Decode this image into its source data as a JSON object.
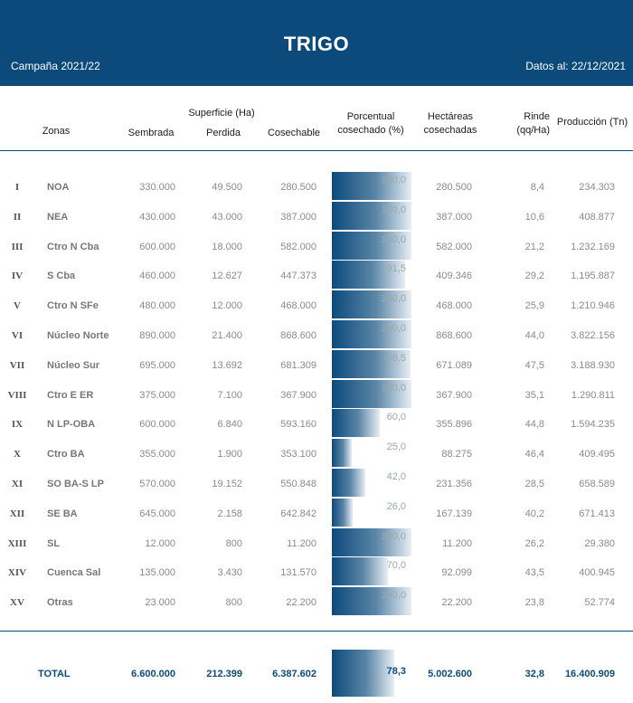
{
  "header": {
    "title": "TRIGO",
    "campaign": "Campaña 2021/22",
    "date": "Datos al: 22/12/2021"
  },
  "columns": {
    "zonas": "Zonas",
    "superficie": "Superficie (Ha)",
    "sembrada": "Sembrada",
    "perdida": "Perdida",
    "cosechable": "Cosechable",
    "porcentual_1": "Porcentual",
    "porcentual_2": "cosechado (%)",
    "hectareas_1": "Hectáreas",
    "hectareas_2": "cosechadas",
    "rinde_1": "Rinde",
    "rinde_2": "(qq/Ha)",
    "produccion": "Producción (Tn)"
  },
  "rows": [
    {
      "roman": "I",
      "zona": "NOA",
      "sembrada": "330.000",
      "perdida": "49.500",
      "cosechable": "280.500",
      "pct_label": "100,0",
      "pct": 100.0,
      "hectareas": "280.500",
      "rinde": "8,4",
      "produccion": "234.303"
    },
    {
      "roman": "II",
      "zona": "NEA",
      "sembrada": "430.000",
      "perdida": "43.000",
      "cosechable": "387.000",
      "pct_label": "100,0",
      "pct": 100.0,
      "hectareas": "387.000",
      "rinde": "10,6",
      "produccion": "408.877"
    },
    {
      "roman": "III",
      "zona": "Ctro N Cba",
      "sembrada": "600.000",
      "perdida": "18.000",
      "cosechable": "582.000",
      "pct_label": "100,0",
      "pct": 100.0,
      "hectareas": "582.000",
      "rinde": "21,2",
      "produccion": "1.232.169"
    },
    {
      "roman": "IV",
      "zona": "S Cba",
      "sembrada": "460.000",
      "perdida": "12.627",
      "cosechable": "447.373",
      "pct_label": "91,5",
      "pct": 91.5,
      "hectareas": "409.346",
      "rinde": "29,2",
      "produccion": "1.195.887"
    },
    {
      "roman": "V",
      "zona": "Ctro N SFe",
      "sembrada": "480.000",
      "perdida": "12.000",
      "cosechable": "468.000",
      "pct_label": "100,0",
      "pct": 100.0,
      "hectareas": "468.000",
      "rinde": "25,9",
      "produccion": "1.210.946"
    },
    {
      "roman": "VI",
      "zona": "Núcleo Norte",
      "sembrada": "890.000",
      "perdida": "21.400",
      "cosechable": "868.600",
      "pct_label": "100,0",
      "pct": 100.0,
      "hectareas": "868.600",
      "rinde": "44,0",
      "produccion": "3.822.156"
    },
    {
      "roman": "VII",
      "zona": "Núcleo Sur",
      "sembrada": "695.000",
      "perdida": "13.692",
      "cosechable": "681.309",
      "pct_label": "98,5",
      "pct": 98.5,
      "hectareas": "671.089",
      "rinde": "47,5",
      "produccion": "3.188.930"
    },
    {
      "roman": "VIII",
      "zona": "Ctro E ER",
      "sembrada": "375.000",
      "perdida": "7.100",
      "cosechable": "367.900",
      "pct_label": "100,0",
      "pct": 100.0,
      "hectareas": "367.900",
      "rinde": "35,1",
      "produccion": "1.290.811"
    },
    {
      "roman": "IX",
      "zona": "N LP-OBA",
      "sembrada": "600.000",
      "perdida": "6.840",
      "cosechable": "593.160",
      "pct_label": "60,0",
      "pct": 60.0,
      "hectareas": "355.896",
      "rinde": "44,8",
      "produccion": "1.594.235"
    },
    {
      "roman": "X",
      "zona": "Ctro BA",
      "sembrada": "355.000",
      "perdida": "1.900",
      "cosechable": "353.100",
      "pct_label": "25,0",
      "pct": 25.0,
      "hectareas": "88.275",
      "rinde": "46,4",
      "produccion": "409.495"
    },
    {
      "roman": "XI",
      "zona": "SO BA-S LP",
      "sembrada": "570.000",
      "perdida": "19.152",
      "cosechable": "550.848",
      "pct_label": "42,0",
      "pct": 42.0,
      "hectareas": "231.356",
      "rinde": "28,5",
      "produccion": "658.589"
    },
    {
      "roman": "XII",
      "zona": "SE BA",
      "sembrada": "645.000",
      "perdida": "2.158",
      "cosechable": "642.842",
      "pct_label": "26,0",
      "pct": 26.0,
      "hectareas": "167.139",
      "rinde": "40,2",
      "produccion": "671.413"
    },
    {
      "roman": "XIII",
      "zona": "SL",
      "sembrada": "12.000",
      "perdida": "800",
      "cosechable": "11.200",
      "pct_label": "100,0",
      "pct": 100.0,
      "hectareas": "11.200",
      "rinde": "26,2",
      "produccion": "29.380"
    },
    {
      "roman": "XIV",
      "zona": "Cuenca Sal",
      "sembrada": "135.000",
      "perdida": "3.430",
      "cosechable": "131.570",
      "pct_label": "70,0",
      "pct": 70.0,
      "hectareas": "92.099",
      "rinde": "43,5",
      "produccion": "400.945"
    },
    {
      "roman": "XV",
      "zona": "Otras",
      "sembrada": "23.000",
      "perdida": "800",
      "cosechable": "22.200",
      "pct_label": "100,0",
      "pct": 100.0,
      "hectareas": "22.200",
      "rinde": "23,8",
      "produccion": "52.774"
    }
  ],
  "total": {
    "label": "TOTAL",
    "sembrada": "6.600.000",
    "perdida": "212.399",
    "cosechable": "6.387.602",
    "pct_label": "78,3",
    "pct": 78.3,
    "hectareas": "5.002.600",
    "rinde": "32,8",
    "produccion": "16.400.909"
  },
  "colors": {
    "primary": "#0c4a7c"
  }
}
